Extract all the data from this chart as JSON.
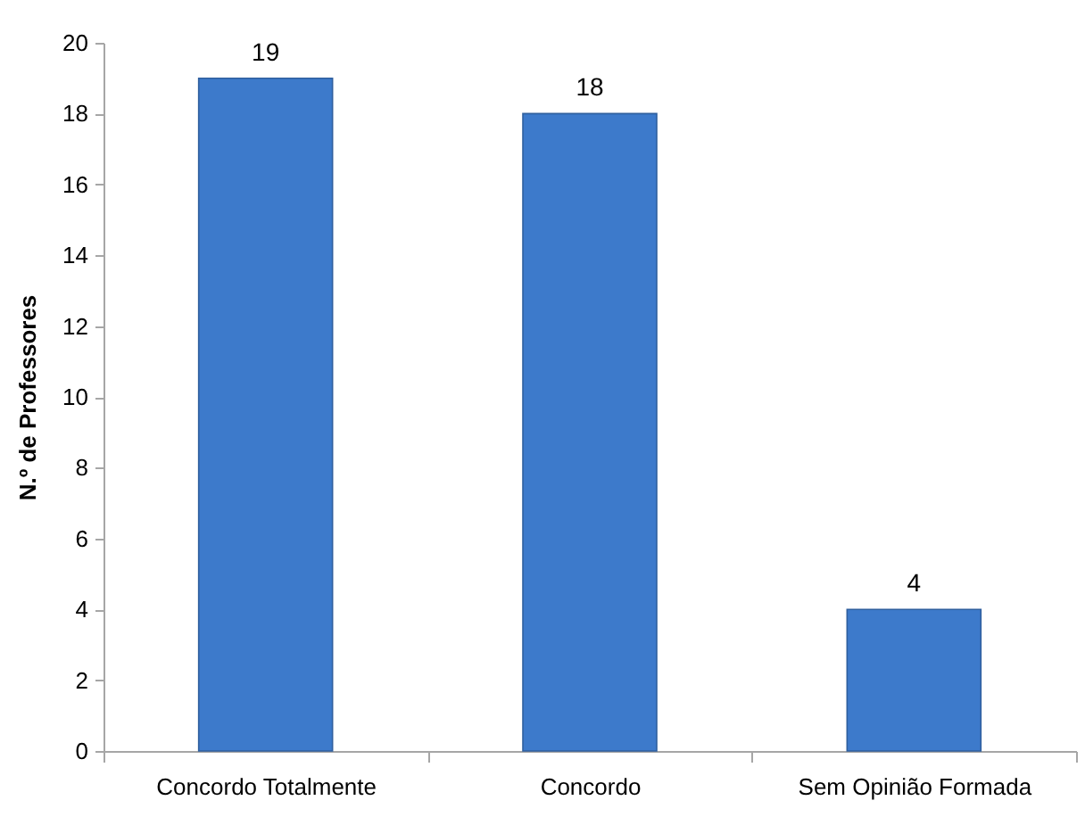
{
  "chart_data": {
    "type": "bar",
    "ylabel": "N.º de Professores",
    "categories": [
      "Concordo Totalmente",
      "Concordo",
      "Sem Opinião Formada"
    ],
    "values": [
      19,
      18,
      4
    ],
    "color": "#3d7acb",
    "ylim": [
      0,
      20
    ],
    "yticks": [
      0,
      2,
      4,
      6,
      8,
      10,
      12,
      14,
      16,
      18,
      20
    ],
    "grid": false,
    "data_labels": true
  }
}
